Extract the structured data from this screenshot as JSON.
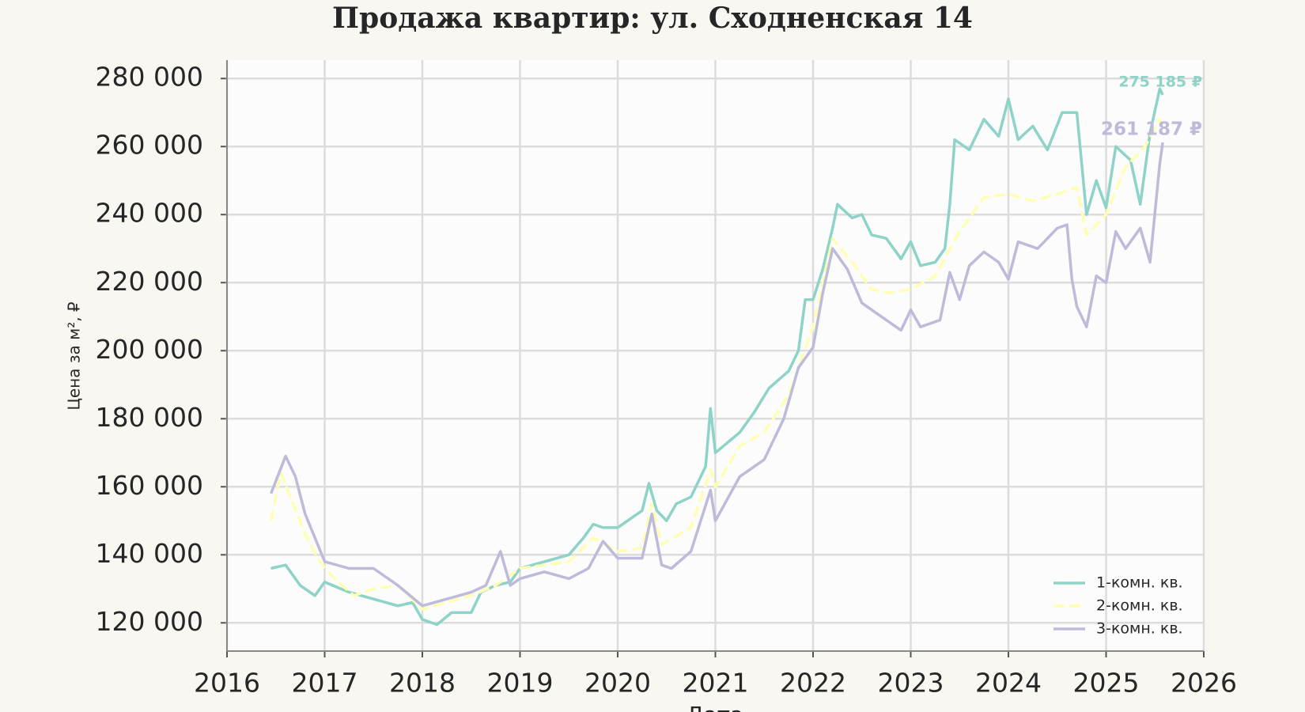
{
  "chart_data": {
    "type": "line",
    "title": "Продажа квартир: ул. Сходненская 14",
    "x_label": "Дата",
    "y_label": "Цена за м², ₽",
    "xlim": [
      2016,
      2026
    ],
    "xticks": [
      2016,
      2017,
      2018,
      2019,
      2020,
      2021,
      2022,
      2023,
      2024,
      2025,
      2026
    ],
    "ylim": [
      111700,
      285400
    ],
    "yticks": [
      {
        "value": 120000,
        "label": "120 000"
      },
      {
        "value": 140000,
        "label": "140 000"
      },
      {
        "value": 160000,
        "label": "160 000"
      },
      {
        "value": 180000,
        "label": "180 000"
      },
      {
        "value": 200000,
        "label": "200 000"
      },
      {
        "value": 220000,
        "label": "220 000"
      },
      {
        "value": 240000,
        "label": "240 000"
      },
      {
        "value": 260000,
        "label": "260 000"
      },
      {
        "value": 280000,
        "label": "280 000"
      }
    ],
    "grid": true,
    "legend": "lower right",
    "series": [
      {
        "name": "1-комн. кв.",
        "color": "#8dd3c7",
        "dash": false,
        "x": [
          2016.45,
          2016.6,
          2016.75,
          2016.9,
          2017.0,
          2017.25,
          2017.5,
          2017.75,
          2017.9,
          2018.0,
          2018.15,
          2018.3,
          2018.5,
          2018.6,
          2018.75,
          2018.9,
          2019.0,
          2019.25,
          2019.5,
          2019.65,
          2019.75,
          2019.85,
          2020.0,
          2020.25,
          2020.32,
          2020.4,
          2020.5,
          2020.6,
          2020.75,
          2020.9,
          2020.95,
          2021.0,
          2021.25,
          2021.4,
          2021.55,
          2021.75,
          2021.85,
          2021.92,
          2022.0,
          2022.1,
          2022.2,
          2022.25,
          2022.4,
          2022.5,
          2022.6,
          2022.75,
          2022.9,
          2023.0,
          2023.1,
          2023.25,
          2023.35,
          2023.4,
          2023.45,
          2023.6,
          2023.75,
          2023.9,
          2024.0,
          2024.1,
          2024.25,
          2024.4,
          2024.55,
          2024.7,
          2024.8,
          2024.9,
          2025.0,
          2025.1,
          2025.25,
          2025.35,
          2025.45,
          2025.55,
          2025.58
        ],
        "values": [
          136000,
          137000,
          131000,
          128000,
          132000,
          129000,
          127000,
          125000,
          126000,
          121000,
          119500,
          123000,
          123000,
          129000,
          131000,
          132000,
          136000,
          138000,
          140000,
          145000,
          149000,
          148000,
          148000,
          153000,
          161000,
          153000,
          150000,
          155000,
          157000,
          166000,
          183000,
          170000,
          176000,
          182000,
          189000,
          194000,
          200000,
          215000,
          215000,
          224000,
          236000,
          243000,
          239000,
          240000,
          234000,
          233000,
          227000,
          232000,
          225000,
          226000,
          230000,
          243000,
          262000,
          259000,
          268000,
          263000,
          274000,
          262000,
          266000,
          259000,
          270000,
          270000,
          240000,
          250000,
          242000,
          260000,
          256000,
          243000,
          264000,
          277000,
          275185
        ]
      },
      {
        "name": "2-комн. кв.",
        "color": "#ffffb3",
        "dash": true,
        "x": [
          2016.45,
          2016.55,
          2016.65,
          2016.8,
          2016.95,
          2017.1,
          2017.3,
          2017.5,
          2017.75,
          2018.0,
          2018.25,
          2018.5,
          2018.75,
          2019.0,
          2019.25,
          2019.5,
          2019.75,
          2020.0,
          2020.25,
          2020.35,
          2020.45,
          2020.75,
          2020.95,
          2021.0,
          2021.25,
          2021.5,
          2021.75,
          2022.0,
          2022.2,
          2022.4,
          2022.6,
          2022.8,
          2023.0,
          2023.25,
          2023.5,
          2023.75,
          2024.0,
          2024.25,
          2024.5,
          2024.7,
          2024.8,
          2025.0,
          2025.2,
          2025.4,
          2025.55,
          2025.58
        ],
        "values": [
          150000,
          164000,
          157000,
          146000,
          138000,
          133000,
          128000,
          130000,
          131000,
          124000,
          126000,
          128000,
          131000,
          136000,
          137000,
          138000,
          145000,
          141000,
          142000,
          155000,
          143000,
          148000,
          165000,
          160000,
          172000,
          176000,
          187000,
          207000,
          233000,
          226000,
          218000,
          217000,
          218000,
          222000,
          235000,
          245000,
          246000,
          244000,
          246000,
          248000,
          234000,
          240000,
          254000,
          260000,
          268000,
          265000
        ]
      },
      {
        "name": "3-комн. кв.",
        "color": "#bebada",
        "dash": false,
        "x": [
          2016.45,
          2016.6,
          2016.7,
          2016.8,
          2016.9,
          2017.0,
          2017.25,
          2017.5,
          2017.75,
          2018.0,
          2018.25,
          2018.5,
          2018.65,
          2018.8,
          2018.9,
          2019.0,
          2019.25,
          2019.5,
          2019.7,
          2019.85,
          2020.0,
          2020.25,
          2020.35,
          2020.45,
          2020.55,
          2020.75,
          2020.95,
          2021.0,
          2021.25,
          2021.5,
          2021.7,
          2021.85,
          2022.0,
          2022.1,
          2022.2,
          2022.35,
          2022.5,
          2022.75,
          2022.9,
          2023.0,
          2023.1,
          2023.3,
          2023.4,
          2023.5,
          2023.6,
          2023.75,
          2023.9,
          2024.0,
          2024.1,
          2024.3,
          2024.5,
          2024.6,
          2024.65,
          2024.7,
          2024.8,
          2024.9,
          2025.0,
          2025.1,
          2025.2,
          2025.35,
          2025.45,
          2025.55,
          2025.58
        ],
        "values": [
          158000,
          169000,
          163000,
          152000,
          145000,
          138000,
          136000,
          136000,
          131000,
          125000,
          127000,
          129000,
          131000,
          141000,
          131000,
          133000,
          135000,
          133000,
          136000,
          144000,
          139000,
          139000,
          152000,
          137000,
          136000,
          141000,
          159000,
          150000,
          163000,
          168000,
          180000,
          195000,
          201000,
          217000,
          230000,
          224000,
          214000,
          209000,
          206000,
          212000,
          207000,
          209000,
          223000,
          215000,
          225000,
          229000,
          226000,
          221000,
          232000,
          230000,
          236000,
          237000,
          221000,
          213000,
          207000,
          222000,
          220000,
          235000,
          230000,
          236000,
          226000,
          255000,
          261187
        ]
      }
    ],
    "annotations": [
      {
        "text": "275 185 ₽",
        "value": 275185,
        "color": "#8dd3c7"
      },
      {
        "text": "261 187 ₽",
        "value": 261187,
        "color": "#bebada"
      }
    ]
  }
}
